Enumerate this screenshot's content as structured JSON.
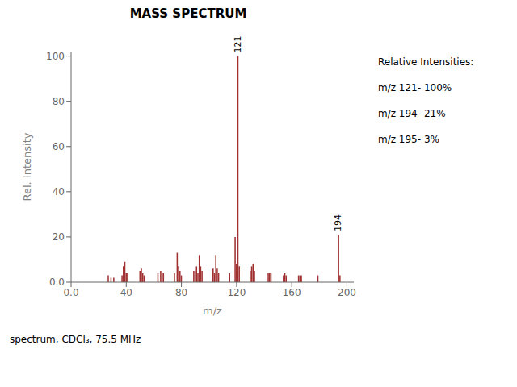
{
  "chart_data": {
    "type": "bar",
    "title": "MASS SPECTRUM",
    "xlabel": "m/z",
    "ylabel": "Rel. Intensity",
    "x": [
      27,
      29,
      31,
      37,
      38,
      39,
      40,
      41,
      50,
      51,
      52,
      53,
      63,
      65,
      66,
      67,
      75,
      77,
      78,
      79,
      80,
      89,
      90,
      91,
      92,
      93,
      94,
      95,
      103,
      104,
      105,
      106,
      107,
      115,
      119,
      120,
      121,
      122,
      130,
      131,
      132,
      133,
      143,
      144,
      145,
      154,
      155,
      156,
      165,
      166,
      167,
      179,
      194,
      195
    ],
    "values": [
      3,
      2,
      2,
      3,
      7,
      9,
      4,
      4,
      5,
      6,
      4,
      3,
      4,
      5,
      4,
      4,
      4,
      13,
      7,
      5,
      3,
      5,
      5,
      7,
      4,
      12,
      7,
      5,
      6,
      4,
      12,
      6,
      4,
      4,
      20,
      8,
      100,
      7,
      5,
      7,
      8,
      5,
      4,
      4,
      4,
      3,
      4,
      3,
      3,
      3,
      3,
      3,
      21,
      3
    ],
    "color": "#a03030",
    "xlim": [
      0.0,
      205
    ],
    "ylim": [
      0.0,
      102
    ],
    "xticks": [
      {
        "value": 0.0,
        "label": "0.0"
      },
      40,
      80,
      120,
      160,
      200
    ],
    "yticks": [
      {
        "value": 0.0,
        "label": "0.0"
      },
      20,
      40,
      60,
      80,
      100
    ],
    "annotations": [
      {
        "x": 121,
        "y": 100,
        "text": "121"
      },
      {
        "x": 194,
        "y": 21,
        "text": "194"
      }
    ],
    "text_box": [
      "Relative Intensities:",
      "m/z 121- 100%",
      "m/z 194- 21%",
      "m/z 195- 3%"
    ],
    "caption": "spectrum, CDCl₃, 75.5 MHz"
  }
}
